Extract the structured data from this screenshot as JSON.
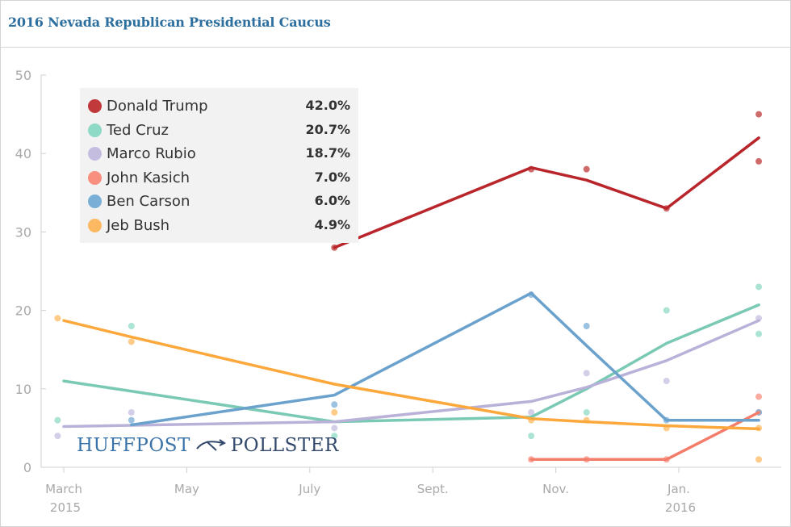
{
  "title": "2016 Nevada Republican Presidential Caucus",
  "brand": {
    "left": "HUFFPOST",
    "right": "POLLSTER",
    "logo_icon": "arrow-logo-icon"
  },
  "legend": [
    {
      "name": "Donald Trump",
      "value": "42.0%",
      "color": "#c0393b"
    },
    {
      "name": "Ted Cruz",
      "value": "20.7%",
      "color": "#8fd9c7"
    },
    {
      "name": "Marco Rubio",
      "value": "18.7%",
      "color": "#c5bde0"
    },
    {
      "name": "John Kasich",
      "value": "7.0%",
      "color": "#f98f7f"
    },
    {
      "name": "Ben Carson",
      "value": "6.0%",
      "color": "#79aed6"
    },
    {
      "name": "Jeb Bush",
      "value": "4.9%",
      "color": "#fdb962"
    }
  ],
  "chart_data": {
    "type": "line",
    "title": "2016 Nevada Republican Presidential Caucus",
    "xlabel": "",
    "ylabel": "",
    "ylim": [
      0,
      50
    ],
    "yticks": [
      0,
      10,
      20,
      30,
      40,
      50
    ],
    "x_unit": "month index (0 = 1 Mar 2015)",
    "xlim": [
      -0.2,
      11.5
    ],
    "xticks": [
      {
        "x": 0,
        "label": "March",
        "sub": "2015"
      },
      {
        "x": 2,
        "label": "May",
        "sub": ""
      },
      {
        "x": 4,
        "label": "July",
        "sub": ""
      },
      {
        "x": 6,
        "label": "Sept.",
        "sub": ""
      },
      {
        "x": 8,
        "label": "Nov.",
        "sub": ""
      },
      {
        "x": 10,
        "label": "Jan.",
        "sub": "2016"
      }
    ],
    "series": [
      {
        "name": "Donald Trump",
        "color": "#c0393b",
        "lineColor": "#b8252a",
        "line": [
          [
            4.4,
            28
          ],
          [
            7.6,
            38.2
          ],
          [
            8.5,
            36.6
          ],
          [
            9.8,
            33
          ],
          [
            11.3,
            42
          ]
        ],
        "points": [
          [
            4.4,
            28
          ],
          [
            7.6,
            38
          ],
          [
            8.5,
            38
          ],
          [
            9.8,
            33
          ],
          [
            11.3,
            45
          ],
          [
            11.3,
            39
          ]
        ]
      },
      {
        "name": "Ted Cruz",
        "color": "#8fd9c7",
        "lineColor": "#79c9b5",
        "line": [
          [
            0,
            11
          ],
          [
            4.4,
            5.8
          ],
          [
            7.6,
            6.4
          ],
          [
            8.5,
            10
          ],
          [
            9.8,
            15.8
          ],
          [
            11.3,
            20.7
          ]
        ],
        "points": [
          [
            -0.1,
            6
          ],
          [
            1.1,
            18
          ],
          [
            4.4,
            4
          ],
          [
            7.6,
            4
          ],
          [
            8.5,
            7
          ],
          [
            9.8,
            20
          ],
          [
            11.3,
            23
          ],
          [
            11.3,
            17
          ]
        ]
      },
      {
        "name": "Marco Rubio",
        "color": "#c5bde0",
        "lineColor": "#bab1d9",
        "line": [
          [
            0,
            5.2
          ],
          [
            4.4,
            5.8
          ],
          [
            7.6,
            8.4
          ],
          [
            8.5,
            10.2
          ],
          [
            9.8,
            13.6
          ],
          [
            11.3,
            18.7
          ]
        ],
        "points": [
          [
            -0.1,
            4
          ],
          [
            1.1,
            7
          ],
          [
            4.4,
            5
          ],
          [
            7.6,
            7
          ],
          [
            8.5,
            12
          ],
          [
            9.8,
            11
          ],
          [
            11.3,
            19
          ]
        ]
      },
      {
        "name": "John Kasich",
        "color": "#f98f7f",
        "lineColor": "#f47c6b",
        "line": [
          [
            7.6,
            1
          ],
          [
            8.5,
            1
          ],
          [
            9.8,
            1
          ],
          [
            11.3,
            7
          ]
        ],
        "points": [
          [
            7.6,
            1
          ],
          [
            8.5,
            1
          ],
          [
            9.8,
            1
          ],
          [
            11.3,
            9
          ],
          [
            11.3,
            7
          ]
        ]
      },
      {
        "name": "Ben Carson",
        "color": "#79aed6",
        "lineColor": "#6aa2cd",
        "line": [
          [
            1.1,
            5.4
          ],
          [
            4.4,
            9.2
          ],
          [
            7.6,
            22.2
          ],
          [
            8.5,
            15.5
          ],
          [
            9.8,
            6
          ],
          [
            11.3,
            6
          ]
        ],
        "points": [
          [
            1.1,
            6
          ],
          [
            4.4,
            8
          ],
          [
            7.6,
            22
          ],
          [
            8.5,
            18
          ],
          [
            9.8,
            6
          ],
          [
            11.3,
            7
          ]
        ]
      },
      {
        "name": "Jeb Bush",
        "color": "#fdb962",
        "lineColor": "#fca83c",
        "line": [
          [
            0,
            18.7
          ],
          [
            1.1,
            16.6
          ],
          [
            4.4,
            10.6
          ],
          [
            7.6,
            6.2
          ],
          [
            8.5,
            5.8
          ],
          [
            9.8,
            5.3
          ],
          [
            11.3,
            4.9
          ]
        ],
        "points": [
          [
            -0.1,
            19
          ],
          [
            1.1,
            16
          ],
          [
            4.4,
            7
          ],
          [
            7.6,
            6
          ],
          [
            8.5,
            6
          ],
          [
            9.8,
            5
          ],
          [
            11.3,
            1
          ],
          [
            11.3,
            5
          ]
        ]
      }
    ]
  }
}
